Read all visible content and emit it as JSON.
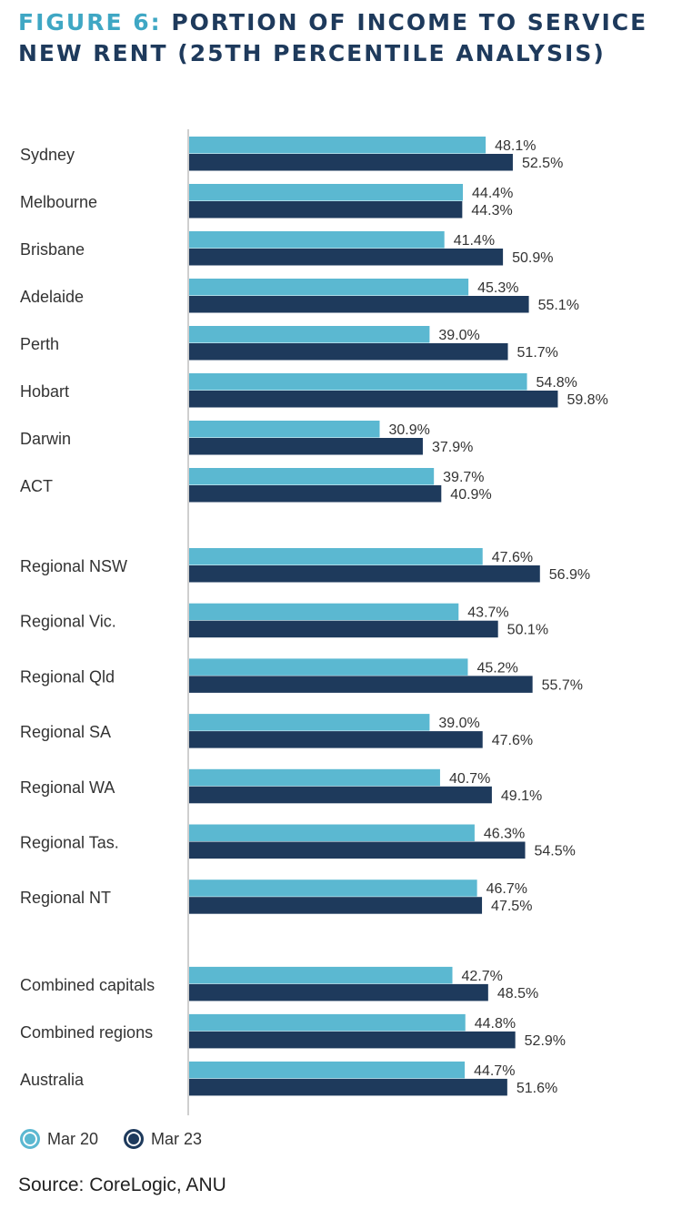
{
  "header": {
    "title_prefix": "FIGURE 6:",
    "title_rest": "PORTION OF INCOME TO SERVICE NEW RENT (25TH PERCENTILE ANALYSIS)"
  },
  "footer": {
    "source": "Source: CoreLogic, ANU"
  },
  "colors": {
    "mar20": "#5bb8d1",
    "mar23": "#1e3a5c",
    "axis": "#bfbfbf"
  },
  "chart_data": {
    "type": "bar",
    "orientation": "horizontal",
    "title": "FIGURE 6: PORTION OF INCOME TO SERVICE NEW RENT (25TH PERCENTILE ANALYSIS)",
    "xlabel": "",
    "ylabel": "",
    "grid": false,
    "legend_position": "bottom-left",
    "xlim": [
      0,
      60
    ],
    "groups": [
      [
        "Sydney",
        "Melbourne",
        "Brisbane",
        "Adelaide",
        "Perth",
        "Hobart",
        "Darwin",
        "ACT"
      ],
      [
        "Regional NSW",
        "Regional Vic.",
        "Regional Qld",
        "Regional SA",
        "Regional WA",
        "Regional Tas.",
        "Regional NT"
      ],
      [
        "Combined capitals",
        "Combined regions",
        "Australia"
      ]
    ],
    "categories": [
      "Sydney",
      "Melbourne",
      "Brisbane",
      "Adelaide",
      "Perth",
      "Hobart",
      "Darwin",
      "ACT",
      "Regional NSW",
      "Regional Vic.",
      "Regional Qld",
      "Regional SA",
      "Regional WA",
      "Regional Tas.",
      "Regional NT",
      "Combined capitals",
      "Combined regions",
      "Australia"
    ],
    "series": [
      {
        "name": "Mar 20",
        "values": [
          48.1,
          44.4,
          41.4,
          45.3,
          39.0,
          54.8,
          30.9,
          39.7,
          47.6,
          43.7,
          45.2,
          39.0,
          40.7,
          46.3,
          46.7,
          42.7,
          44.8,
          44.7
        ],
        "labels": [
          "48.1%",
          "44.4%",
          "41.4%",
          "45.3%",
          "39.0%",
          "54.8%",
          "30.9%",
          "39.7%",
          "47.6%",
          "43.7%",
          "45.2%",
          "39.0%",
          "40.7%",
          "46.3%",
          "46.7%",
          "42.7%",
          "44.8%",
          "44.7%"
        ]
      },
      {
        "name": "Mar 23",
        "values": [
          52.5,
          44.3,
          50.9,
          55.1,
          51.7,
          59.8,
          37.9,
          40.9,
          56.9,
          50.1,
          55.7,
          47.6,
          49.1,
          54.5,
          47.5,
          48.5,
          52.9,
          51.6
        ],
        "labels": [
          "52.5%",
          "44.3%",
          "50.9%",
          "55.1%",
          "51.7%",
          "59.8%",
          "37.9%",
          "40.9%",
          "56.9%",
          "50.1%",
          "55.7%",
          "47.6%",
          "49.1%",
          "54.5%",
          "47.5%",
          "48.5%",
          "52.9%",
          "51.6%"
        ]
      }
    ]
  }
}
